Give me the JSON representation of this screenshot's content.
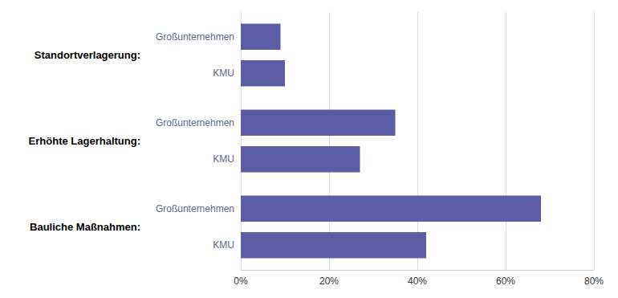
{
  "chart_data": {
    "type": "bar",
    "orientation": "horizontal",
    "categories": [
      "Standortverlagerung:",
      "Erhöhte Lagerhaltung:",
      "Bauliche Maßnahmen:"
    ],
    "series": [
      {
        "name": "Großunternehmen",
        "color": "#5B5EA6",
        "values": [
          9,
          35,
          68
        ]
      },
      {
        "name": "KMU",
        "color": "#5B5EA6",
        "values": [
          10,
          27,
          42
        ]
      }
    ],
    "xlim": [
      0,
      80
    ],
    "xticks": [
      {
        "value": 0,
        "label": "0%"
      },
      {
        "value": 20,
        "label": "20%"
      },
      {
        "value": 40,
        "label": "40%"
      },
      {
        "value": 60,
        "label": "60%"
      },
      {
        "value": 80,
        "label": "80%"
      }
    ],
    "grid": true
  }
}
